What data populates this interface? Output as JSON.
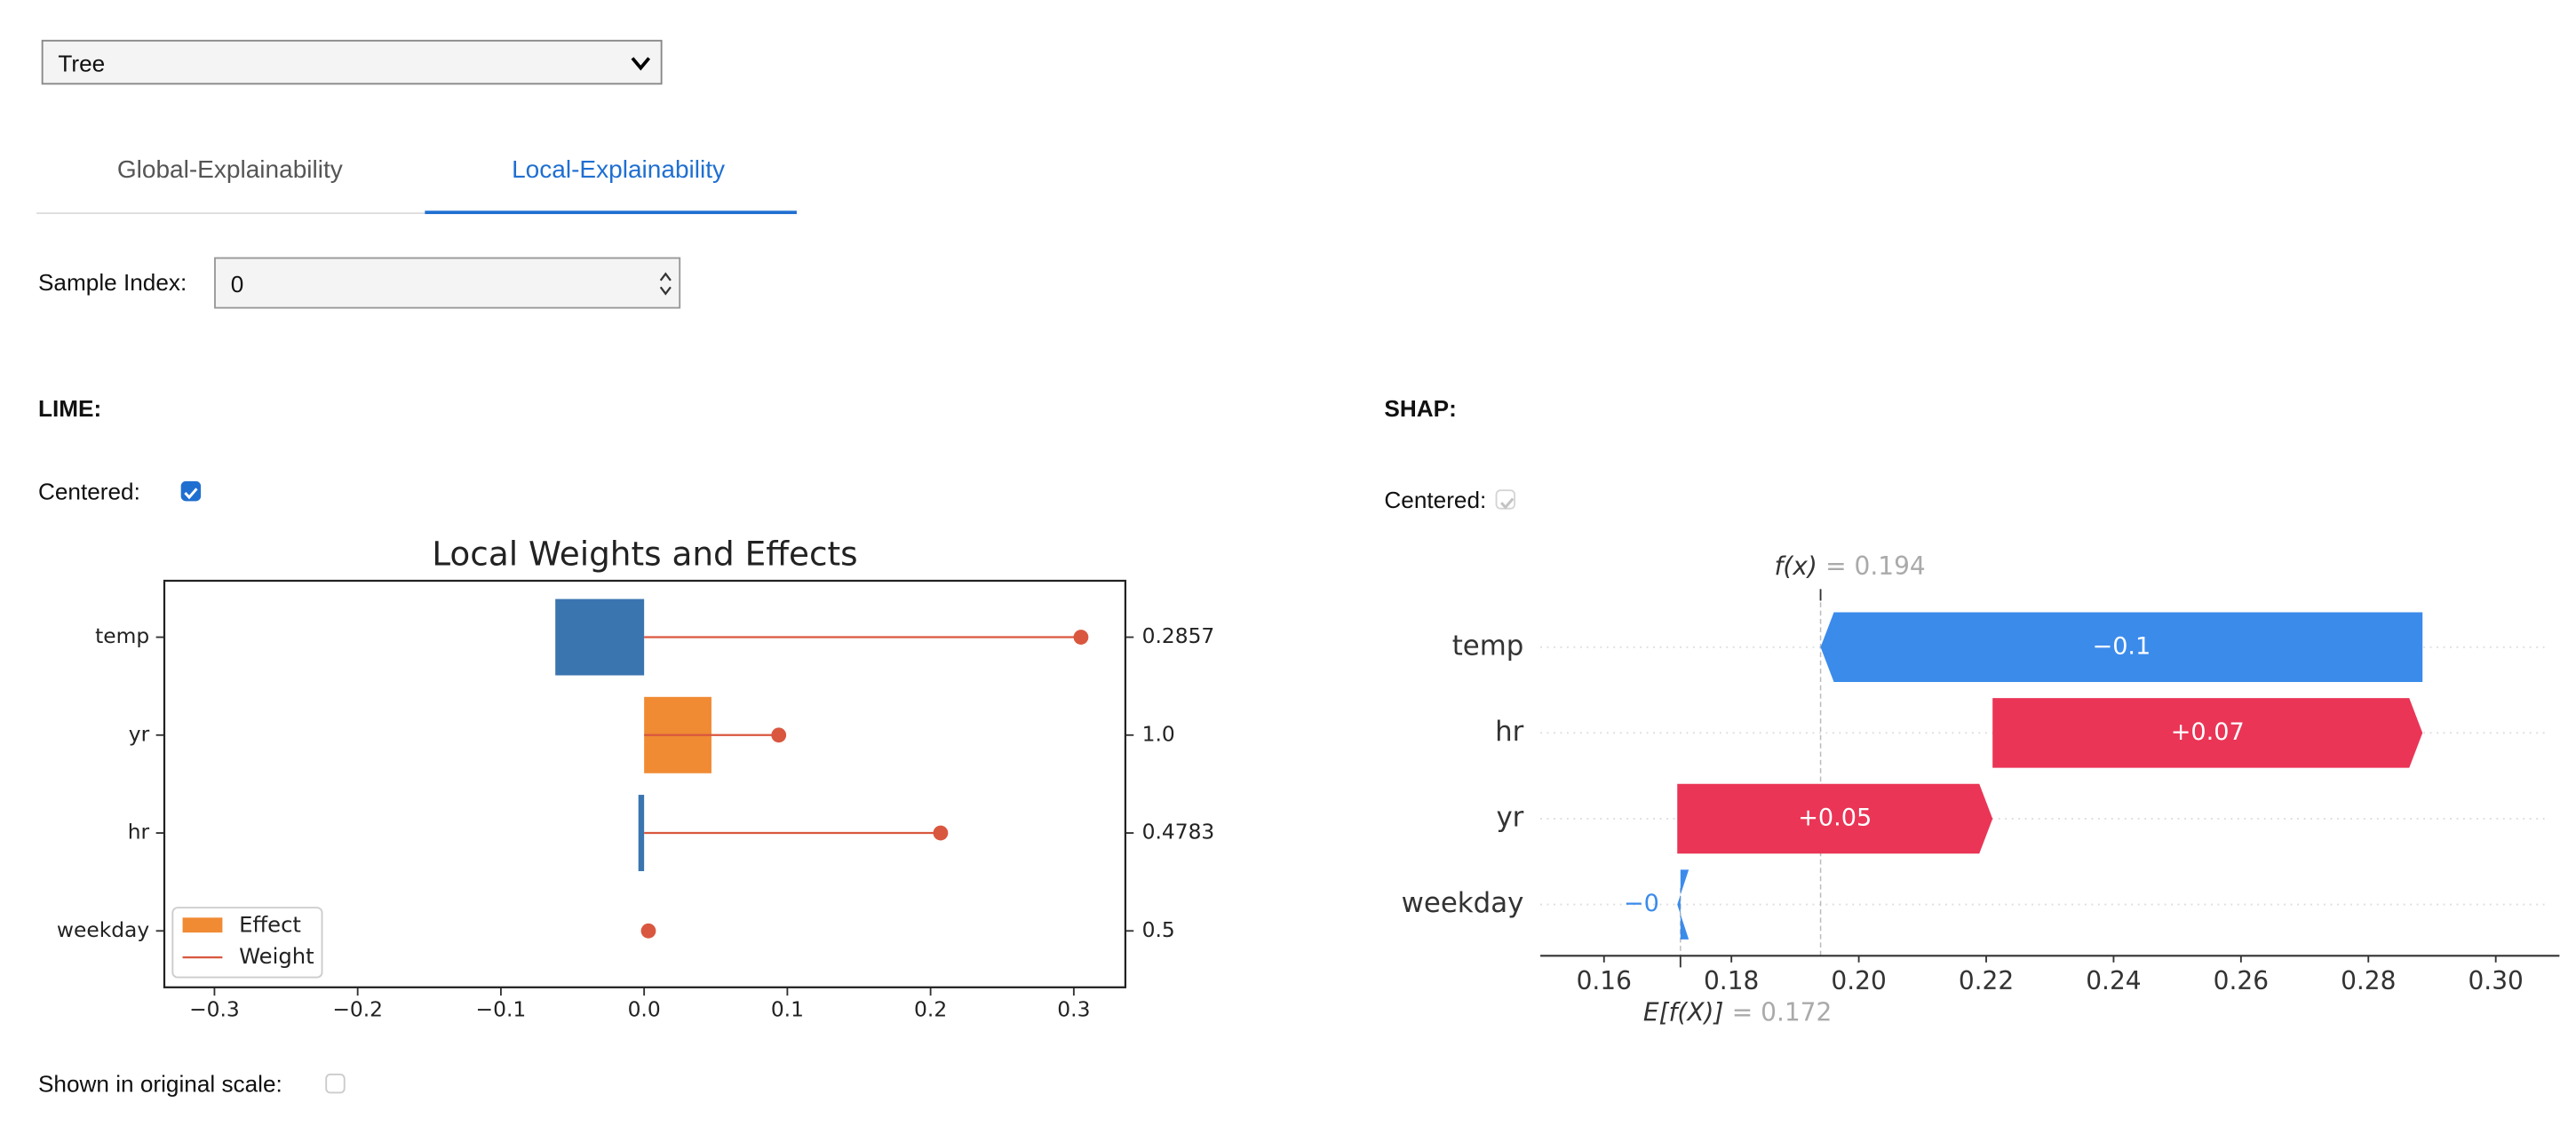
{
  "ui": {
    "model_select": "Tree",
    "tabs": [
      "Global-Explainability",
      "Local-Explainability"
    ],
    "active_tab": 1,
    "sample_index_label": "Sample Index:",
    "sample_index": 0,
    "lime_heading": "LIME:",
    "shap_heading": "SHAP:",
    "lime_centered_label": "Centered:",
    "lime_centered": true,
    "shap_centered_label": "Centered:",
    "shap_centered": true,
    "original_scale_label": "Shown in original scale:",
    "original_scale": false
  },
  "chart_data": [
    {
      "type": "lime",
      "title": "Local Weights and Effects",
      "categories": [
        "temp",
        "yr",
        "hr",
        "weekday"
      ],
      "feature_values": [
        "0.2857",
        "1.0",
        "0.4783",
        "0.5"
      ],
      "series": [
        {
          "name": "Effect",
          "color": "#f08a33",
          "colors": [
            "#3a75b0",
            "#f08a33",
            "#3a75b0",
            "#f08a33"
          ],
          "values": [
            -0.062,
            0.047,
            -0.004,
            0
          ]
        },
        {
          "name": "Weight",
          "color": "#d9573f",
          "values": [
            0.305,
            0.094,
            0.207,
            0.003
          ]
        }
      ],
      "xlim": [
        -0.335,
        0.336
      ],
      "xticks": [
        {
          "value": -0.3,
          "label": "−0.3"
        },
        {
          "value": -0.2,
          "label": "−0.2"
        },
        {
          "value": -0.1,
          "label": "−0.1"
        },
        {
          "value": 0,
          "label": "0.0"
        },
        0.1,
        0.2,
        0.3
      ],
      "legend": "lower left"
    },
    {
      "type": "waterfall",
      "categories": [
        "temp",
        "hr",
        "yr",
        "weekday"
      ],
      "values": [
        -0.0945,
        0.0675,
        0.0495,
        -0.0005
      ],
      "value_labels": [
        "−0.1",
        "+0.07",
        "+0.05",
        "−0"
      ],
      "positive_color": "#ea3556",
      "negative_color": "#3b8beb",
      "base_value": 0.172,
      "base_label": "E[f(X)]",
      "base_text": "= 0.172",
      "fx": 0.194,
      "fx_label": "f(x)",
      "fx_text": "= 0.194",
      "xlim": [
        0.15,
        0.31
      ],
      "xticks": [
        0.16,
        0.18,
        {
          "value": 0.2,
          "label": "0.20"
        },
        0.22,
        0.24,
        0.26,
        0.28,
        {
          "value": 0.3,
          "label": "0.30"
        }
      ]
    }
  ]
}
